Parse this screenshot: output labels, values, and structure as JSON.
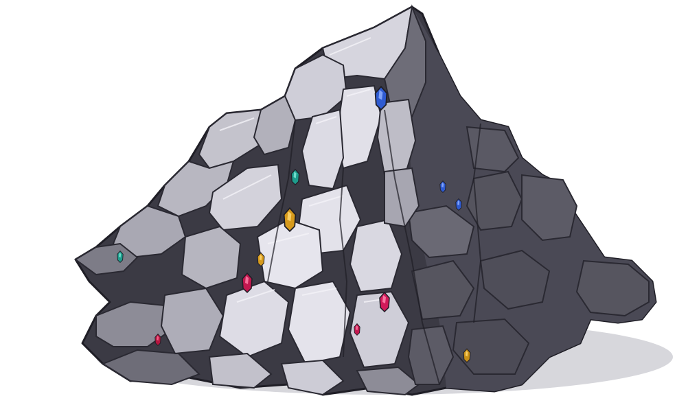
{
  "asset": {
    "subject": "rocky-mountain-with-gems",
    "background": "#ffffff",
    "colors": {
      "shadow_ground": "#d7d7dc",
      "rock_dark": "#3b3a44",
      "rock_mid": "#5c5b66",
      "rock_face": "#8d8c97",
      "rock_light": "#c4c3cc",
      "rock_highlight": "#e7e6ee",
      "outline": "#1f1e26"
    },
    "gems": [
      {
        "name": "blue-gem-peak",
        "color": "#2f5bd1",
        "highlight": "#8fb0ff"
      },
      {
        "name": "teal-gem-left",
        "color": "#1e9c8c",
        "highlight": "#7fe6d6"
      },
      {
        "name": "teal-gem-edge",
        "color": "#1e9c8c",
        "highlight": "#7fe6d6"
      },
      {
        "name": "gold-gem-mid",
        "color": "#d69a1c",
        "highlight": "#ffd873"
      },
      {
        "name": "gold-gem-small",
        "color": "#d69a1c",
        "highlight": "#ffd873"
      },
      {
        "name": "gold-gem-lower-right",
        "color": "#c99018",
        "highlight": "#ffd873"
      },
      {
        "name": "pink-gem-left",
        "color": "#c2184f",
        "highlight": "#ff7fa6"
      },
      {
        "name": "pink-gem-center",
        "color": "#d01b5a",
        "highlight": "#ff86ae"
      },
      {
        "name": "pink-gem-base",
        "color": "#c2184f",
        "highlight": "#ff7fa6"
      },
      {
        "name": "red-gem-base-left",
        "color": "#b3163f",
        "highlight": "#ff6d95"
      },
      {
        "name": "blue-gem-right-1",
        "color": "#2f5bd1",
        "highlight": "#8fb0ff"
      },
      {
        "name": "blue-gem-right-2",
        "color": "#2f5bd1",
        "highlight": "#8fb0ff"
      }
    ]
  }
}
